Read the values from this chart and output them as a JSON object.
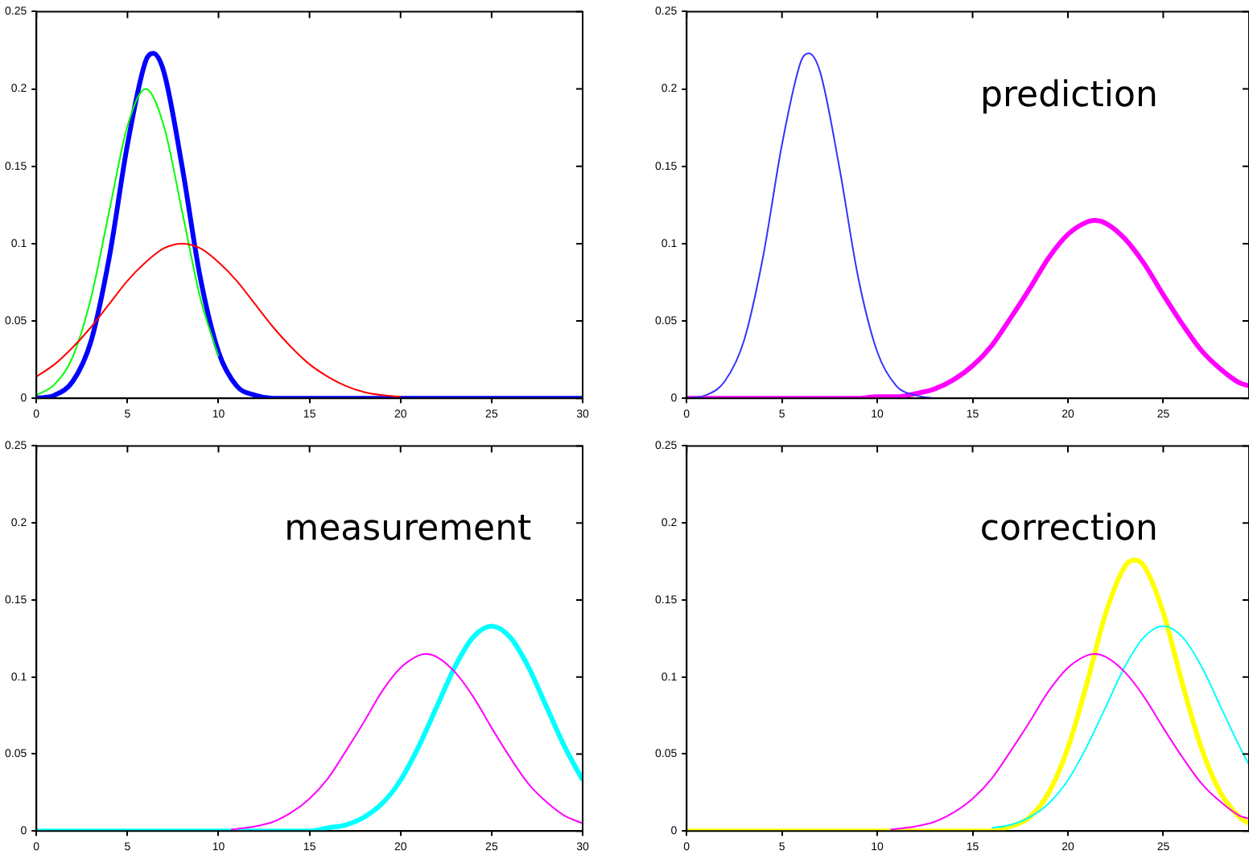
{
  "chart_data": [
    {
      "type": "line",
      "xlim": [
        0,
        30
      ],
      "ylim": [
        0,
        0.25
      ],
      "xticks": [
        0,
        5,
        10,
        15,
        20,
        25,
        30
      ],
      "yticks": [
        0,
        0.05,
        0.1,
        0.15,
        0.2,
        0.25
      ],
      "grid": false,
      "legend": false,
      "marker": "none",
      "line_style": "solid",
      "series": [
        {
          "color": "#ff0000",
          "x": [
            0,
            1,
            2,
            3,
            4,
            5,
            6,
            7,
            8,
            9,
            10,
            11,
            12,
            13,
            14,
            15,
            16,
            17,
            18,
            19,
            20
          ],
          "values": [
            0.014,
            0.022,
            0.033,
            0.046,
            0.061,
            0.076,
            0.088,
            0.097,
            0.1,
            0.097,
            0.088,
            0.076,
            0.061,
            0.046,
            0.033,
            0.022,
            0.014,
            0.008,
            0.004,
            0.002,
            0.001
          ]
        },
        {
          "color": "#00ff00",
          "x": [
            0,
            1,
            2,
            3,
            4,
            5,
            6,
            7,
            8,
            9,
            10
          ],
          "values": [
            0.002,
            0.009,
            0.027,
            0.065,
            0.121,
            0.176,
            0.2,
            0.176,
            0.121,
            0.065,
            0.027
          ]
        },
        {
          "color": "#0000ff",
          "x": [
            0,
            1,
            2,
            3,
            4,
            5,
            6,
            6.4,
            7,
            8,
            9,
            10,
            11,
            12,
            13,
            30
          ],
          "values": [
            0,
            0.002,
            0.011,
            0.037,
            0.091,
            0.164,
            0.218,
            0.223,
            0.211,
            0.15,
            0.078,
            0.03,
            0.008,
            0.002,
            0,
            0
          ]
        }
      ]
    },
    {
      "type": "line",
      "xlim": [
        0,
        29.5
      ],
      "ylim": [
        0,
        0.25
      ],
      "xticks": [
        0,
        5,
        10,
        15,
        20,
        25
      ],
      "yticks": [
        0,
        0.05,
        0.1,
        0.15,
        0.2,
        0.25
      ],
      "grid": false,
      "legend": false,
      "marker": "none",
      "line_style": "solid",
      "annotations": [
        "prediction"
      ],
      "series": [
        {
          "color": "#3333ff",
          "x": [
            0,
            1,
            2,
            3,
            4,
            5,
            6,
            6.4,
            7,
            8,
            9,
            10,
            11,
            12,
            13
          ],
          "values": [
            0,
            0.002,
            0.011,
            0.037,
            0.091,
            0.164,
            0.218,
            0.223,
            0.211,
            0.15,
            0.078,
            0.03,
            0.008,
            0.002,
            0
          ]
        },
        {
          "color": "#ff00ff",
          "x": [
            0,
            9,
            10,
            11,
            12,
            13,
            14,
            15,
            16,
            17,
            18,
            19,
            20,
            21,
            21.4,
            22,
            23,
            24,
            25,
            26,
            27,
            28,
            29,
            29.5
          ],
          "values": [
            0,
            0,
            0.001,
            0.001,
            0.003,
            0.006,
            0.012,
            0.021,
            0.034,
            0.052,
            0.071,
            0.091,
            0.106,
            0.114,
            0.115,
            0.113,
            0.103,
            0.087,
            0.067,
            0.048,
            0.031,
            0.019,
            0.01,
            0.008
          ]
        }
      ]
    },
    {
      "type": "line",
      "xlim": [
        0,
        30
      ],
      "ylim": [
        0,
        0.25
      ],
      "xticks": [
        0,
        5,
        10,
        15,
        20,
        25,
        30
      ],
      "yticks": [
        0,
        0.05,
        0.1,
        0.15,
        0.2,
        0.25
      ],
      "grid": false,
      "legend": false,
      "marker": "none",
      "line_style": "solid",
      "annotations": [
        "measurement"
      ],
      "series": [
        {
          "color": "#ff00ff",
          "x": [
            10.7,
            12,
            13,
            14,
            15,
            16,
            17,
            18,
            19,
            20,
            21,
            21.4,
            22,
            23,
            24,
            25,
            26,
            27,
            28,
            29,
            30
          ],
          "values": [
            0.001,
            0.003,
            0.006,
            0.012,
            0.021,
            0.034,
            0.052,
            0.071,
            0.091,
            0.106,
            0.114,
            0.115,
            0.113,
            0.103,
            0.087,
            0.067,
            0.048,
            0.031,
            0.019,
            0.01,
            0.005
          ]
        },
        {
          "color": "#00ffff",
          "x": [
            0,
            15,
            16,
            17,
            18,
            19,
            20,
            21,
            22,
            23,
            24,
            25,
            26,
            27,
            28,
            29,
            30
          ],
          "values": [
            0,
            0,
            0.002,
            0.004,
            0.009,
            0.018,
            0.033,
            0.055,
            0.081,
            0.107,
            0.126,
            0.133,
            0.126,
            0.107,
            0.081,
            0.055,
            0.033
          ]
        }
      ]
    },
    {
      "type": "line",
      "xlim": [
        0,
        29.5
      ],
      "ylim": [
        0,
        0.25
      ],
      "xticks": [
        0,
        5,
        10,
        15,
        20,
        25
      ],
      "yticks": [
        0,
        0.05,
        0.1,
        0.15,
        0.2,
        0.25
      ],
      "grid": false,
      "legend": false,
      "marker": "none",
      "line_style": "solid",
      "annotations": [
        "correction"
      ],
      "series": [
        {
          "color": "#ff00ff",
          "x": [
            10.7,
            12,
            13,
            14,
            15,
            16,
            17,
            18,
            19,
            20,
            21,
            21.4,
            22,
            23,
            24,
            25,
            26,
            27,
            28,
            29,
            29.5
          ],
          "values": [
            0.001,
            0.003,
            0.006,
            0.012,
            0.021,
            0.034,
            0.052,
            0.071,
            0.091,
            0.106,
            0.114,
            0.115,
            0.113,
            0.103,
            0.087,
            0.067,
            0.048,
            0.031,
            0.019,
            0.01,
            0.008
          ]
        },
        {
          "color": "#00ffff",
          "x": [
            16,
            17,
            18,
            19,
            20,
            21,
            22,
            23,
            24,
            25,
            26,
            27,
            28,
            29,
            29.5
          ],
          "values": [
            0.002,
            0.004,
            0.009,
            0.018,
            0.033,
            0.055,
            0.081,
            0.107,
            0.126,
            0.133,
            0.126,
            0.107,
            0.081,
            0.055,
            0.043
          ]
        },
        {
          "color": "#ffff00",
          "x": [
            0,
            16,
            17,
            18,
            19,
            20,
            21,
            22,
            23,
            23.5,
            24,
            25,
            26,
            27,
            28,
            29,
            29.5
          ],
          "values": [
            0,
            0,
            0.003,
            0.009,
            0.025,
            0.054,
            0.096,
            0.142,
            0.172,
            0.176,
            0.172,
            0.142,
            0.096,
            0.054,
            0.025,
            0.009,
            0.005
          ]
        }
      ]
    }
  ]
}
